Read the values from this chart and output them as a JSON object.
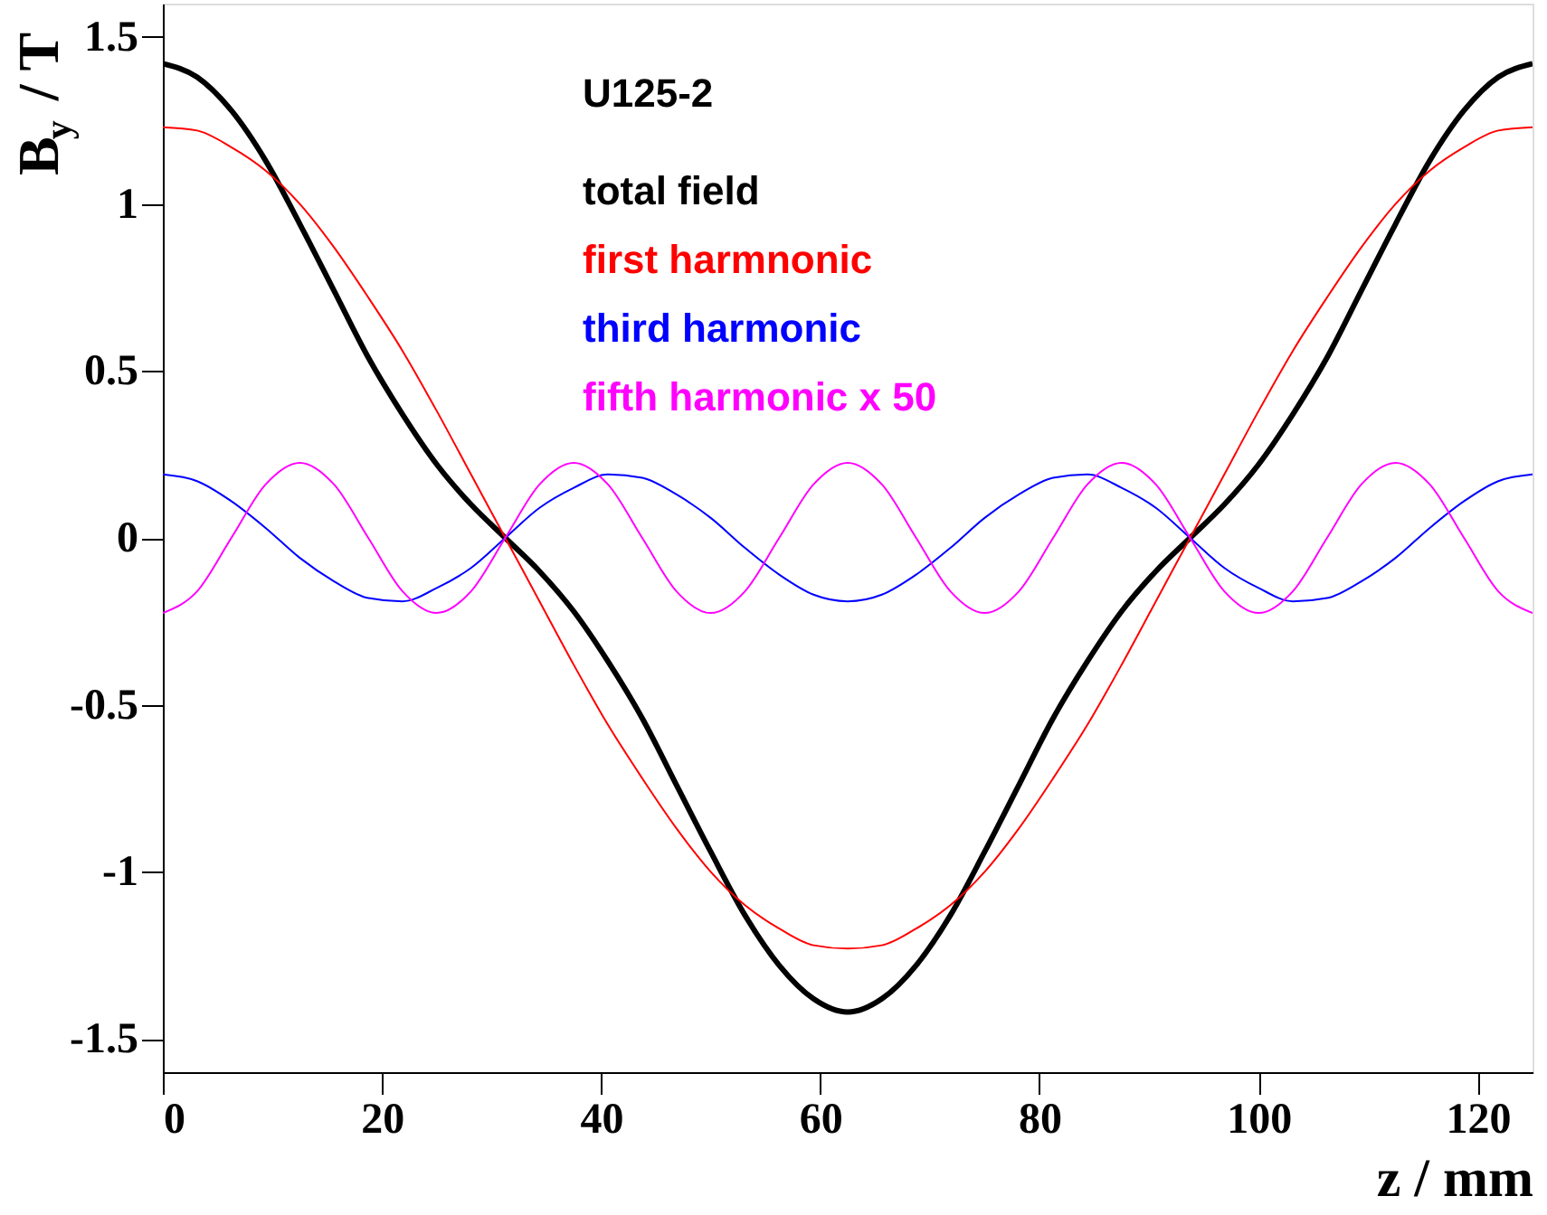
{
  "chart_data": {
    "type": "line",
    "xlabel": "z / mm",
    "ylabel": "B$_{y}$ / T",
    "annotations": [
      "U125-2"
    ],
    "x": [
      0,
      3.125,
      6.25,
      9.375,
      12.5,
      15.625,
      18.75,
      21.875,
      25,
      28.125,
      31.25,
      34.375,
      37.5,
      40.625,
      43.75,
      46.875,
      50,
      53.125,
      56.25,
      59.375,
      62.5,
      65.625,
      68.75,
      71.875,
      75,
      78.125,
      81.25,
      84.375,
      87.5,
      90.625,
      93.75,
      96.875,
      100,
      103.125,
      106.25,
      109.375,
      112.5,
      115.625,
      118.75,
      121.875,
      125
    ],
    "series": [
      {
        "name": "total field",
        "color": "#000000",
        "values": [
          1.42,
          1.38,
          1.28,
          1.13,
          0.94,
          0.74,
          0.54,
          0.37,
          0.22,
          0.1,
          0,
          -0.1,
          -0.22,
          -0.37,
          -0.54,
          -0.74,
          -0.94,
          -1.13,
          -1.28,
          -1.38,
          -1.42,
          -1.38,
          -1.28,
          -1.13,
          -0.94,
          -0.74,
          -0.54,
          -0.37,
          -0.22,
          -0.1,
          0,
          0.1,
          0.22,
          0.37,
          0.54,
          0.74,
          0.94,
          1.13,
          1.28,
          1.38,
          1.42
        ]
      },
      {
        "name": "first harmnonic",
        "color": "#ff0000",
        "values": [
          1.23,
          1.22,
          1.17,
          1.1,
          1.0,
          0.87,
          0.72,
          0.56,
          0.38,
          0.19,
          0,
          -0.19,
          -0.38,
          -0.56,
          -0.72,
          -0.87,
          -1.0,
          -1.1,
          -1.17,
          -1.22,
          -1.23,
          -1.22,
          -1.17,
          -1.1,
          -1.0,
          -0.87,
          -0.72,
          -0.56,
          -0.38,
          -0.19,
          0,
          0.19,
          0.38,
          0.56,
          0.72,
          0.87,
          1.0,
          1.1,
          1.17,
          1.22,
          1.23
        ]
      },
      {
        "name": "third harmonic",
        "color": "#0000ff",
        "values": [
          0.19,
          0.17,
          0.11,
          0.03,
          -0.06,
          -0.13,
          -0.18,
          -0.19,
          -0.15,
          -0.09,
          0,
          0.09,
          0.15,
          0.19,
          0.18,
          0.13,
          0.06,
          -0.03,
          -0.11,
          -0.17,
          -0.19,
          -0.17,
          -0.11,
          -0.03,
          0.06,
          0.13,
          0.18,
          0.19,
          0.15,
          0.09,
          0,
          -0.09,
          -0.15,
          -0.19,
          -0.18,
          -0.13,
          -0.06,
          0.03,
          0.11,
          0.17,
          0.19
        ]
      },
      {
        "name": "fifth harmonic x 50",
        "color": "#ff00ff",
        "values": [
          -0.225,
          -0.16,
          0,
          0.16,
          0.225,
          0.16,
          0,
          -0.16,
          -0.225,
          -0.16,
          0,
          0.16,
          0.225,
          0.16,
          0,
          -0.16,
          -0.225,
          -0.16,
          0,
          0.16,
          0.225,
          0.16,
          0,
          -0.16,
          -0.225,
          -0.16,
          0,
          0.16,
          0.225,
          0.16,
          0,
          -0.16,
          -0.225,
          -0.16,
          0,
          0.16,
          0.225,
          0.16,
          0,
          -0.16,
          -0.225
        ]
      }
    ],
    "xlim": [
      0,
      125
    ],
    "xticks": [
      0,
      20,
      40,
      60,
      80,
      100,
      120
    ],
    "ylim": [
      -1.6,
      1.6
    ],
    "yticks": [
      -1.5,
      -1,
      -0.5,
      0,
      0.5,
      1,
      1.5
    ],
    "grid": false,
    "legend": "top",
    "marker": "none",
    "line_style": "solid"
  }
}
